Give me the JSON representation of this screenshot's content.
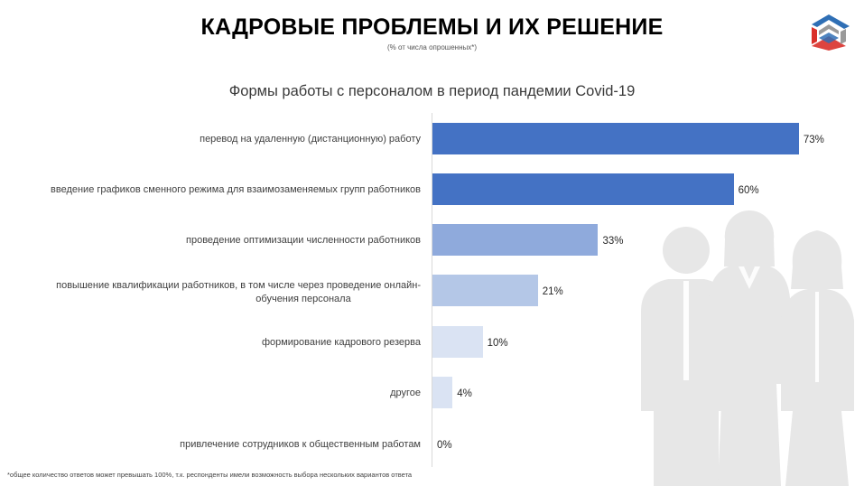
{
  "header": {
    "title": "КАДРОВЫЕ ПРОБЛЕМЫ И ИХ РЕШЕНИЕ",
    "subtitle": "(% от числа опрошенных*)"
  },
  "footnote": "*общее количество ответов может превышать 100%, т.к. респонденты имели возможность выбора нескольких вариантов ответа",
  "colors": {
    "bar_dark": "#4472c4",
    "bar_mid": "#8faadc",
    "bar_light": "#b4c7e7",
    "bar_lighter": "#dae3f3",
    "silhouette": "#e7e7e7",
    "logo_red": "#d9302a",
    "logo_blue": "#2f6fb5",
    "logo_grey": "#9a9a9a"
  },
  "icons": [
    "organization-logo",
    "people-silhouette"
  ],
  "chart_data": {
    "type": "bar",
    "orientation": "horizontal",
    "title": "Формы работы с персоналом в период пандемии Covid-19",
    "categories": [
      "перевод на удаленную (дистанционную) работу",
      "введение графиков сменного режима для взаимозаменяемых групп работников",
      "проведение оптимизации численности работников",
      "повышение квалификации работников, в том числе через проведение онлайн-обучения персонала",
      "формирование кадрового резерва",
      "другое",
      "привлечение сотрудников к общественным работам"
    ],
    "category_lines": [
      [
        "перевод на удаленную (дистанционную) работу"
      ],
      [
        "введение графиков сменного режима для взаимозаменяемых групп работников"
      ],
      [
        "проведение оптимизации численности работников"
      ],
      [
        "повышение квалификации работников, в том числе через проведение онлайн-",
        "обучения персонала"
      ],
      [
        "формирование кадрового резерва"
      ],
      [
        "другое"
      ],
      [
        "привлечение сотрудников к общественным работам"
      ]
    ],
    "values": [
      73,
      60,
      33,
      21,
      10,
      4,
      0
    ],
    "value_labels": [
      "73%",
      "60%",
      "33%",
      "21%",
      "10%",
      "4%",
      "0%"
    ],
    "bar_colors": [
      "#4472c4",
      "#4472c4",
      "#8faadc",
      "#b4c7e7",
      "#dae3f3",
      "#dae3f3",
      "#dae3f3"
    ],
    "unit": "%",
    "xlim": [
      0,
      100
    ],
    "grid": false,
    "legend": "none"
  }
}
